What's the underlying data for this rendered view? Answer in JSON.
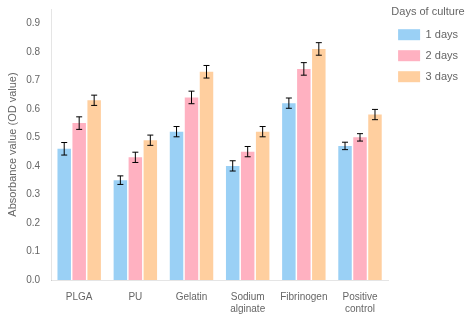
{
  "chart_data": {
    "type": "bar",
    "categories": [
      "PLGA",
      "PU",
      "Gelatin",
      "Sodium\nalginate",
      "Fibrinogen",
      "Positive\ncontrol"
    ],
    "series": [
      {
        "name": "1 days",
        "values": [
          0.46,
          0.35,
          0.52,
          0.4,
          0.62,
          0.47
        ],
        "errors": [
          0.022,
          0.015,
          0.018,
          0.018,
          0.018,
          0.013
        ]
      },
      {
        "name": "2 days",
        "values": [
          0.55,
          0.43,
          0.64,
          0.45,
          0.74,
          0.5
        ],
        "errors": [
          0.022,
          0.018,
          0.022,
          0.018,
          0.022,
          0.013
        ]
      },
      {
        "name": "3 days",
        "values": [
          0.63,
          0.49,
          0.73,
          0.52,
          0.81,
          0.58
        ],
        "errors": [
          0.018,
          0.018,
          0.022,
          0.018,
          0.022,
          0.018
        ]
      }
    ],
    "ylabel": "Absorbance value (OD value)",
    "legend_title": "Days of culture",
    "ylim": [
      0.0,
      0.95
    ],
    "yticks": [
      {
        "value": 0,
        "label": "0.0"
      },
      0.1,
      0.2,
      0.3,
      0.4,
      0.5,
      0.6,
      0.7,
      0.8,
      0.9
    ],
    "grid": false,
    "legend": "right"
  }
}
